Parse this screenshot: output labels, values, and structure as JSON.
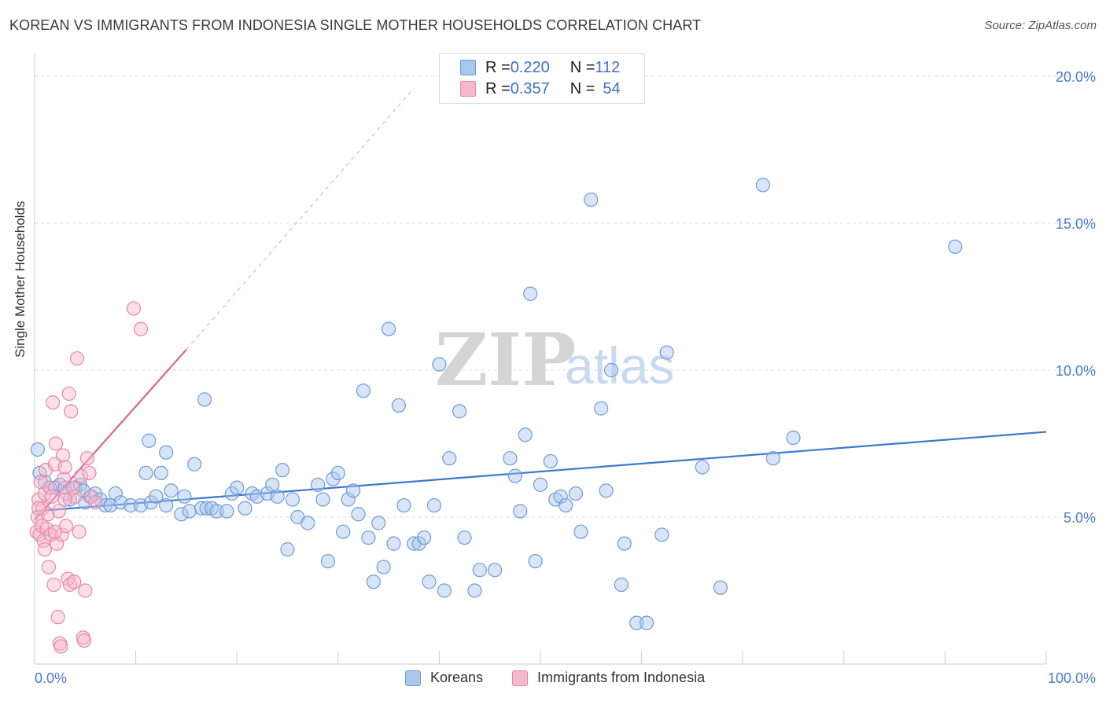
{
  "title": "KOREAN VS IMMIGRANTS FROM INDONESIA SINGLE MOTHER HOUSEHOLDS CORRELATION CHART",
  "source": "Source: ZipAtlas.com",
  "watermark": {
    "zip": "ZIP",
    "atlas": "atlas"
  },
  "colors": {
    "blue_fill": "#a9c6ee",
    "blue_stroke": "#6f9ad8",
    "blue_line": "#3b78d0",
    "pink_fill": "#f7b8cb",
    "pink_stroke": "#e886a6",
    "pink_line": "#e0608c",
    "grid": "#dddddd",
    "axis_text": "#4a7cc9"
  },
  "legend_top": [
    {
      "r_label": "R = ",
      "r_value": "0.220",
      "n_label": "N = ",
      "n_value": "112",
      "color": "#a9c6ee",
      "border": "#6f9ad8"
    },
    {
      "r_label": "R = ",
      "r_value": "0.357",
      "n_label": "N = ",
      "n_value": "54",
      "color": "#f7b8cb",
      "border": "#e886a6"
    }
  ],
  "legend_bottom": [
    {
      "label": "Koreans",
      "color": "#a9c6ee",
      "border": "#6f9ad8"
    },
    {
      "label": "Immigrants from Indonesia",
      "color": "#f7b8cb",
      "border": "#e886a6"
    }
  ],
  "chart_data": {
    "type": "scatter",
    "title": "KOREAN VS IMMIGRANTS FROM INDONESIA SINGLE MOTHER HOUSEHOLDS CORRELATION CHART",
    "xlabel": "",
    "ylabel": "Single Mother Households",
    "xlim": [
      0,
      100
    ],
    "ylim": [
      0,
      20
    ],
    "y_ticks": [
      5,
      10,
      15,
      20
    ],
    "y_tick_labels": [
      "5.0%",
      "10.0%",
      "15.0%",
      "20.0%"
    ],
    "x_tick_labels": [
      "0.0%",
      "100.0%"
    ],
    "grid": true,
    "legend": "top-center",
    "series": [
      {
        "name": "Koreans",
        "color": "#a9c6ee",
        "trend": {
          "x": [
            0,
            100
          ],
          "y": [
            5.2,
            7.9
          ]
        },
        "points": [
          [
            0.3,
            7.3
          ],
          [
            0.5,
            6.5
          ],
          [
            1.0,
            6.2
          ],
          [
            1.5,
            6.0
          ],
          [
            2.0,
            6.0
          ],
          [
            2.5,
            6.1
          ],
          [
            3.0,
            6.0
          ],
          [
            3.5,
            5.6
          ],
          [
            4.0,
            6.0
          ],
          [
            4.5,
            6.1
          ],
          [
            5.0,
            5.5
          ],
          [
            5.5,
            5.7
          ],
          [
            6.0,
            5.8
          ],
          [
            6.5,
            5.6
          ],
          [
            7.0,
            5.4
          ],
          [
            7.5,
            5.4
          ],
          [
            8.0,
            5.8
          ],
          [
            8.5,
            5.5
          ],
          [
            9.5,
            5.4
          ],
          [
            10.5,
            5.4
          ],
          [
            11.0,
            6.5
          ],
          [
            11.5,
            5.5
          ],
          [
            11.3,
            7.6
          ],
          [
            12.0,
            5.7
          ],
          [
            12.5,
            6.5
          ],
          [
            13.0,
            7.2
          ],
          [
            13.5,
            5.9
          ],
          [
            13.0,
            5.4
          ],
          [
            14.5,
            5.1
          ],
          [
            14.8,
            5.7
          ],
          [
            15.3,
            5.2
          ],
          [
            15.8,
            6.8
          ],
          [
            16.5,
            5.3
          ],
          [
            17.0,
            5.3
          ],
          [
            17.5,
            5.3
          ],
          [
            18.0,
            5.2
          ],
          [
            16.8,
            9.0
          ],
          [
            19.0,
            5.2
          ],
          [
            19.5,
            5.8
          ],
          [
            20.0,
            6.0
          ],
          [
            20.8,
            5.3
          ],
          [
            21.5,
            5.8
          ],
          [
            22.0,
            5.7
          ],
          [
            23.0,
            5.8
          ],
          [
            23.5,
            6.1
          ],
          [
            24.0,
            5.7
          ],
          [
            24.5,
            6.6
          ],
          [
            25.0,
            3.9
          ],
          [
            25.5,
            5.6
          ],
          [
            26.0,
            5.0
          ],
          [
            27.0,
            4.8
          ],
          [
            28.0,
            6.1
          ],
          [
            28.5,
            5.6
          ],
          [
            29.0,
            3.5
          ],
          [
            29.5,
            6.3
          ],
          [
            30.0,
            6.5
          ],
          [
            30.5,
            4.5
          ],
          [
            31.0,
            5.6
          ],
          [
            31.5,
            5.9
          ],
          [
            32.0,
            5.1
          ],
          [
            32.5,
            9.3
          ],
          [
            33.0,
            4.3
          ],
          [
            33.5,
            2.8
          ],
          [
            34.0,
            4.8
          ],
          [
            34.5,
            3.3
          ],
          [
            35.0,
            11.4
          ],
          [
            35.5,
            4.1
          ],
          [
            36.0,
            8.8
          ],
          [
            36.5,
            5.4
          ],
          [
            37.5,
            4.1
          ],
          [
            38.0,
            4.1
          ],
          [
            38.5,
            4.3
          ],
          [
            39.0,
            2.8
          ],
          [
            39.5,
            5.4
          ],
          [
            40.0,
            10.2
          ],
          [
            40.5,
            2.5
          ],
          [
            41.0,
            7.0
          ],
          [
            42.0,
            8.6
          ],
          [
            42.5,
            4.3
          ],
          [
            43.5,
            2.5
          ],
          [
            44.0,
            3.2
          ],
          [
            45.5,
            3.2
          ],
          [
            47.0,
            7.0
          ],
          [
            47.5,
            6.4
          ],
          [
            48.0,
            5.2
          ],
          [
            48.5,
            7.8
          ],
          [
            49.0,
            12.6
          ],
          [
            49.5,
            3.5
          ],
          [
            50.0,
            6.1
          ],
          [
            51.0,
            6.9
          ],
          [
            51.5,
            5.6
          ],
          [
            52.0,
            5.7
          ],
          [
            52.5,
            5.4
          ],
          [
            53.5,
            5.8
          ],
          [
            54.0,
            4.5
          ],
          [
            55.0,
            15.8
          ],
          [
            56.0,
            8.7
          ],
          [
            56.5,
            5.9
          ],
          [
            57.0,
            10.0
          ],
          [
            58.0,
            2.7
          ],
          [
            58.3,
            4.1
          ],
          [
            59.5,
            1.4
          ],
          [
            60.5,
            1.4
          ],
          [
            62.0,
            4.4
          ],
          [
            62.5,
            10.6
          ],
          [
            66.0,
            6.7
          ],
          [
            67.8,
            2.6
          ],
          [
            72.0,
            16.3
          ],
          [
            73.0,
            7.0
          ],
          [
            75.0,
            7.7
          ],
          [
            91.0,
            14.2
          ],
          [
            4.8,
            5.9
          ]
        ]
      },
      {
        "name": "Immigrants from Indonesia",
        "color": "#f7b8cb",
        "trend": {
          "x": [
            0,
            15
          ],
          "y": [
            4.9,
            10.7
          ]
        },
        "trend_dashed": {
          "x": [
            15,
            37.5
          ],
          "y": [
            10.7,
            19.6
          ]
        },
        "points": [
          [
            0.2,
            4.5
          ],
          [
            0.3,
            5.0
          ],
          [
            0.4,
            5.6
          ],
          [
            0.5,
            4.4
          ],
          [
            0.6,
            6.2
          ],
          [
            0.7,
            4.7
          ],
          [
            0.8,
            5.3
          ],
          [
            0.9,
            4.2
          ],
          [
            1.0,
            5.8
          ],
          [
            1.1,
            6.6
          ],
          [
            1.2,
            4.6
          ],
          [
            1.3,
            5.1
          ],
          [
            1.4,
            3.3
          ],
          [
            1.5,
            6.0
          ],
          [
            1.6,
            4.4
          ],
          [
            1.7,
            5.7
          ],
          [
            1.8,
            8.9
          ],
          [
            1.9,
            2.7
          ],
          [
            2.0,
            6.8
          ],
          [
            2.1,
            7.5
          ],
          [
            2.2,
            4.1
          ],
          [
            2.3,
            1.6
          ],
          [
            2.4,
            5.2
          ],
          [
            2.5,
            0.7
          ],
          [
            2.6,
            0.6
          ],
          [
            2.7,
            4.4
          ],
          [
            2.8,
            7.1
          ],
          [
            2.9,
            6.3
          ],
          [
            3.0,
            6.7
          ],
          [
            3.1,
            4.7
          ],
          [
            3.2,
            5.8
          ],
          [
            3.3,
            2.9
          ],
          [
            3.4,
            9.2
          ],
          [
            3.5,
            2.7
          ],
          [
            3.6,
            8.6
          ],
          [
            3.8,
            6.0
          ],
          [
            3.9,
            2.8
          ],
          [
            4.0,
            5.7
          ],
          [
            4.2,
            10.4
          ],
          [
            4.4,
            4.5
          ],
          [
            4.6,
            6.4
          ],
          [
            4.8,
            0.9
          ],
          [
            4.9,
            0.8
          ],
          [
            5.0,
            2.5
          ],
          [
            5.2,
            7.0
          ],
          [
            5.4,
            6.5
          ],
          [
            5.6,
            5.7
          ],
          [
            6.0,
            5.5
          ],
          [
            9.8,
            12.1
          ],
          [
            10.5,
            11.4
          ],
          [
            0.4,
            5.3
          ],
          [
            1.0,
            3.9
          ],
          [
            2.0,
            4.5
          ],
          [
            3.0,
            5.6
          ]
        ]
      }
    ]
  }
}
